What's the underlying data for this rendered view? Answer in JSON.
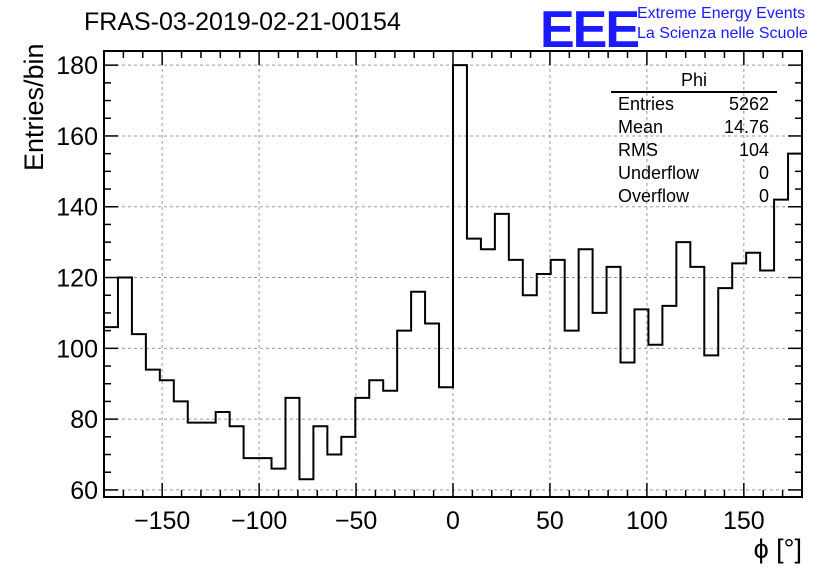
{
  "title": "FRAS-03-2019-02-21-00154",
  "logo": {
    "mark": "EEE",
    "line1": "Extreme Energy Events",
    "line2": "La Scienza nelle Scuole",
    "color": "#1a1aff"
  },
  "stats": {
    "name": "Phi",
    "rows": [
      {
        "label": "Entries",
        "value": "5262"
      },
      {
        "label": "Mean",
        "value": "14.76"
      },
      {
        "label": "RMS",
        "value": "104"
      },
      {
        "label": "Underflow",
        "value": "0"
      },
      {
        "label": "Overflow",
        "value": "0"
      }
    ]
  },
  "chart_data": {
    "type": "histogram",
    "title": "FRAS-03-2019-02-21-00154",
    "xlabel": "ϕ [°]",
    "ylabel": "Entries/bin",
    "xlim": [
      -180,
      180
    ],
    "ylim": [
      58,
      184
    ],
    "bin_width": 7.2,
    "bin_start": -180,
    "values": [
      106,
      120,
      104,
      94,
      91,
      85,
      79,
      79,
      82,
      78,
      69,
      69,
      66,
      86,
      63,
      78,
      70,
      75,
      86,
      91,
      88,
      105,
      116,
      107,
      89,
      180,
      131,
      128,
      138,
      125,
      115,
      121,
      125,
      105,
      128,
      110,
      123,
      96,
      111,
      101,
      112,
      130,
      123,
      98,
      117,
      124,
      127,
      122,
      142,
      155
    ],
    "xticks": [
      -150,
      -100,
      -50,
      0,
      50,
      100,
      150
    ],
    "xtick_labels": [
      "−150",
      "−100",
      "−50",
      "0",
      "50",
      "100",
      "150"
    ],
    "yticks": [
      60,
      80,
      100,
      120,
      140,
      160,
      180
    ],
    "ytick_labels": [
      "60",
      "80",
      "100",
      "120",
      "140",
      "160",
      "180"
    ],
    "grid": true,
    "legend": "top-right"
  }
}
